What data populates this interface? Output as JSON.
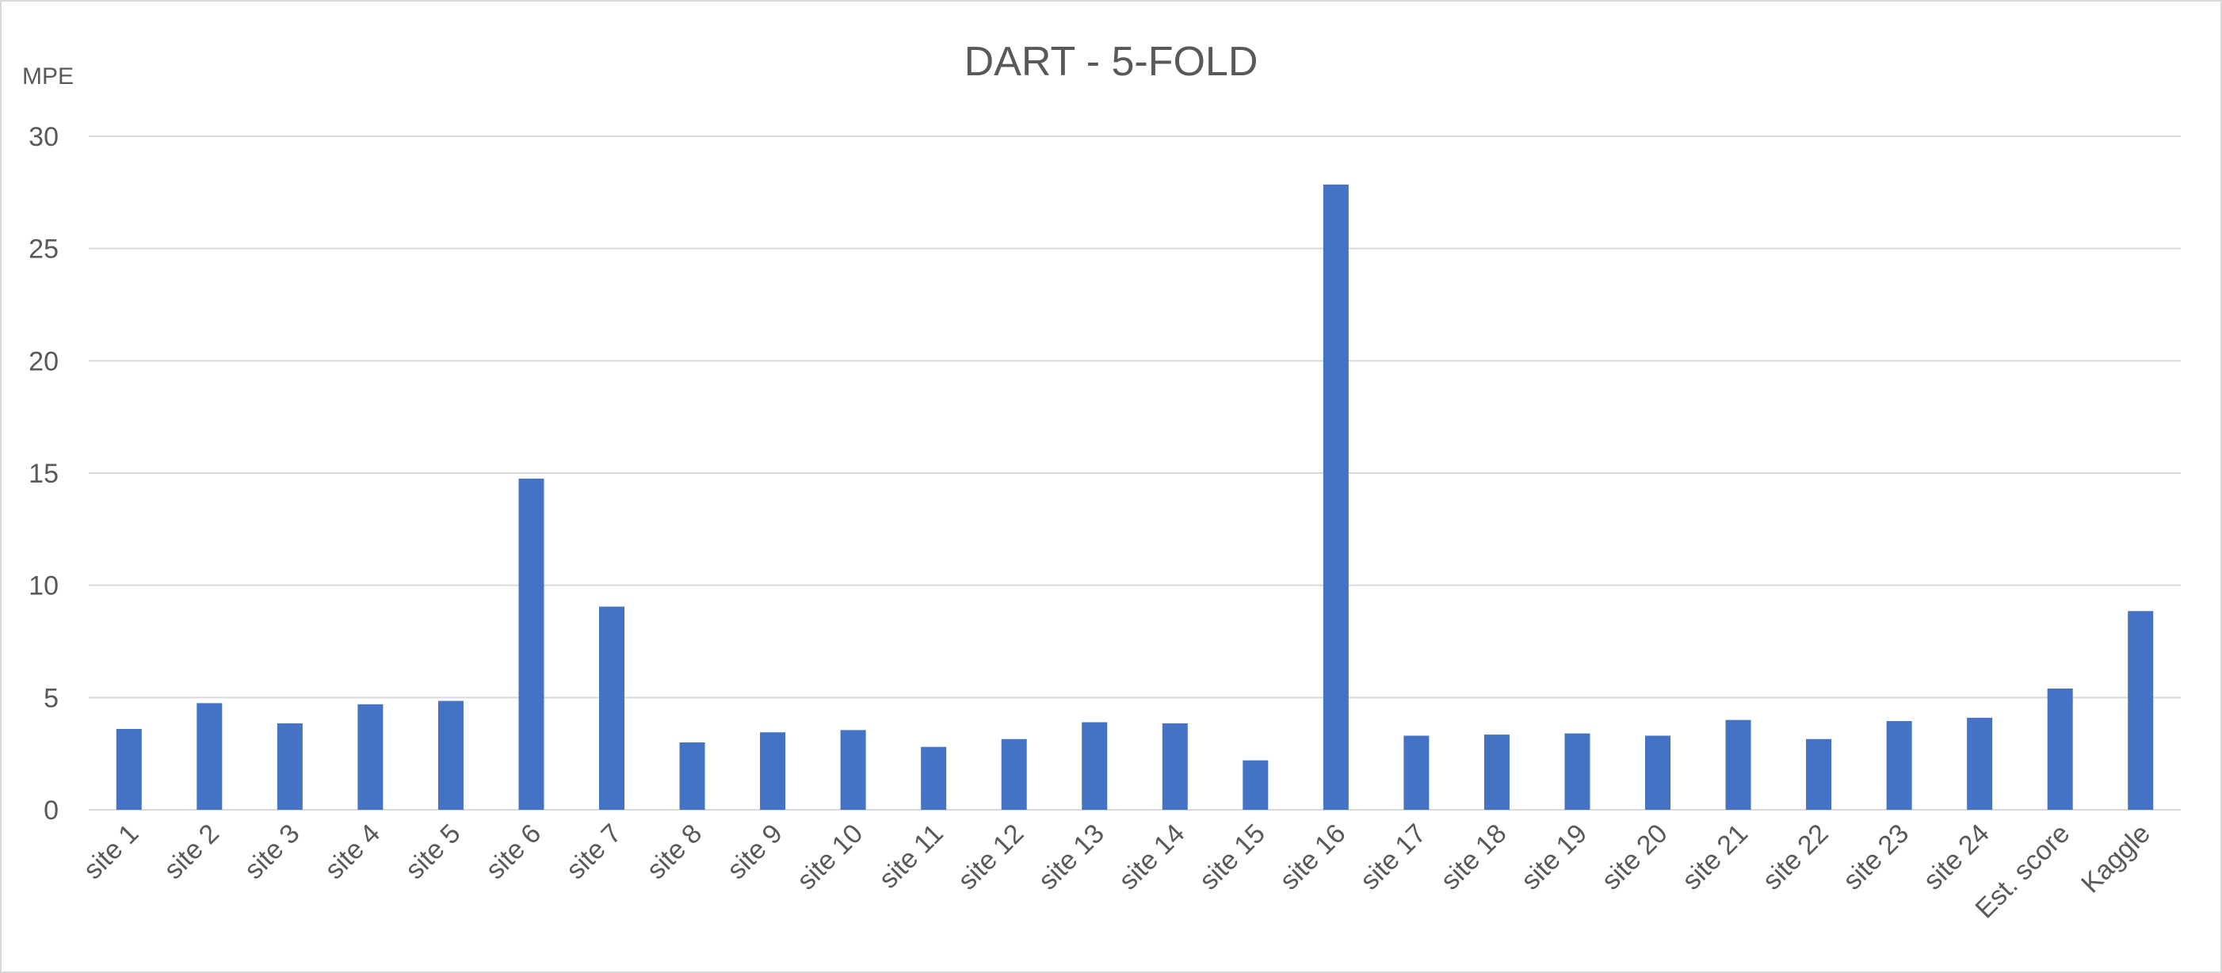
{
  "chart_data": {
    "type": "bar",
    "title": "DART - 5-FOLD",
    "ylabel": "MPE",
    "xlabel": "",
    "ylim": [
      0,
      30
    ],
    "yticks": [
      0,
      5,
      10,
      15,
      20,
      25,
      30
    ],
    "grid": true,
    "legend": "none",
    "bar_color": "#4472c4",
    "categories": [
      "site 1",
      "site 2",
      "site 3",
      "site 4",
      "site 5",
      "site 6",
      "site 7",
      "site 8",
      "site 9",
      "site 10",
      "site 11",
      "site 12",
      "site 13",
      "site 14",
      "site 15",
      "site 16",
      "site 17",
      "site 18",
      "site 19",
      "site 20",
      "site 21",
      "site 22",
      "site 23",
      "site 24",
      "Est. score",
      "Kaggle"
    ],
    "values": [
      3.6,
      4.75,
      3.85,
      4.7,
      4.85,
      14.75,
      9.05,
      3.0,
      3.45,
      3.55,
      2.8,
      3.15,
      3.9,
      3.85,
      2.2,
      27.85,
      3.3,
      3.35,
      3.4,
      3.3,
      4.0,
      3.15,
      3.95,
      4.1,
      5.4,
      8.85
    ]
  }
}
